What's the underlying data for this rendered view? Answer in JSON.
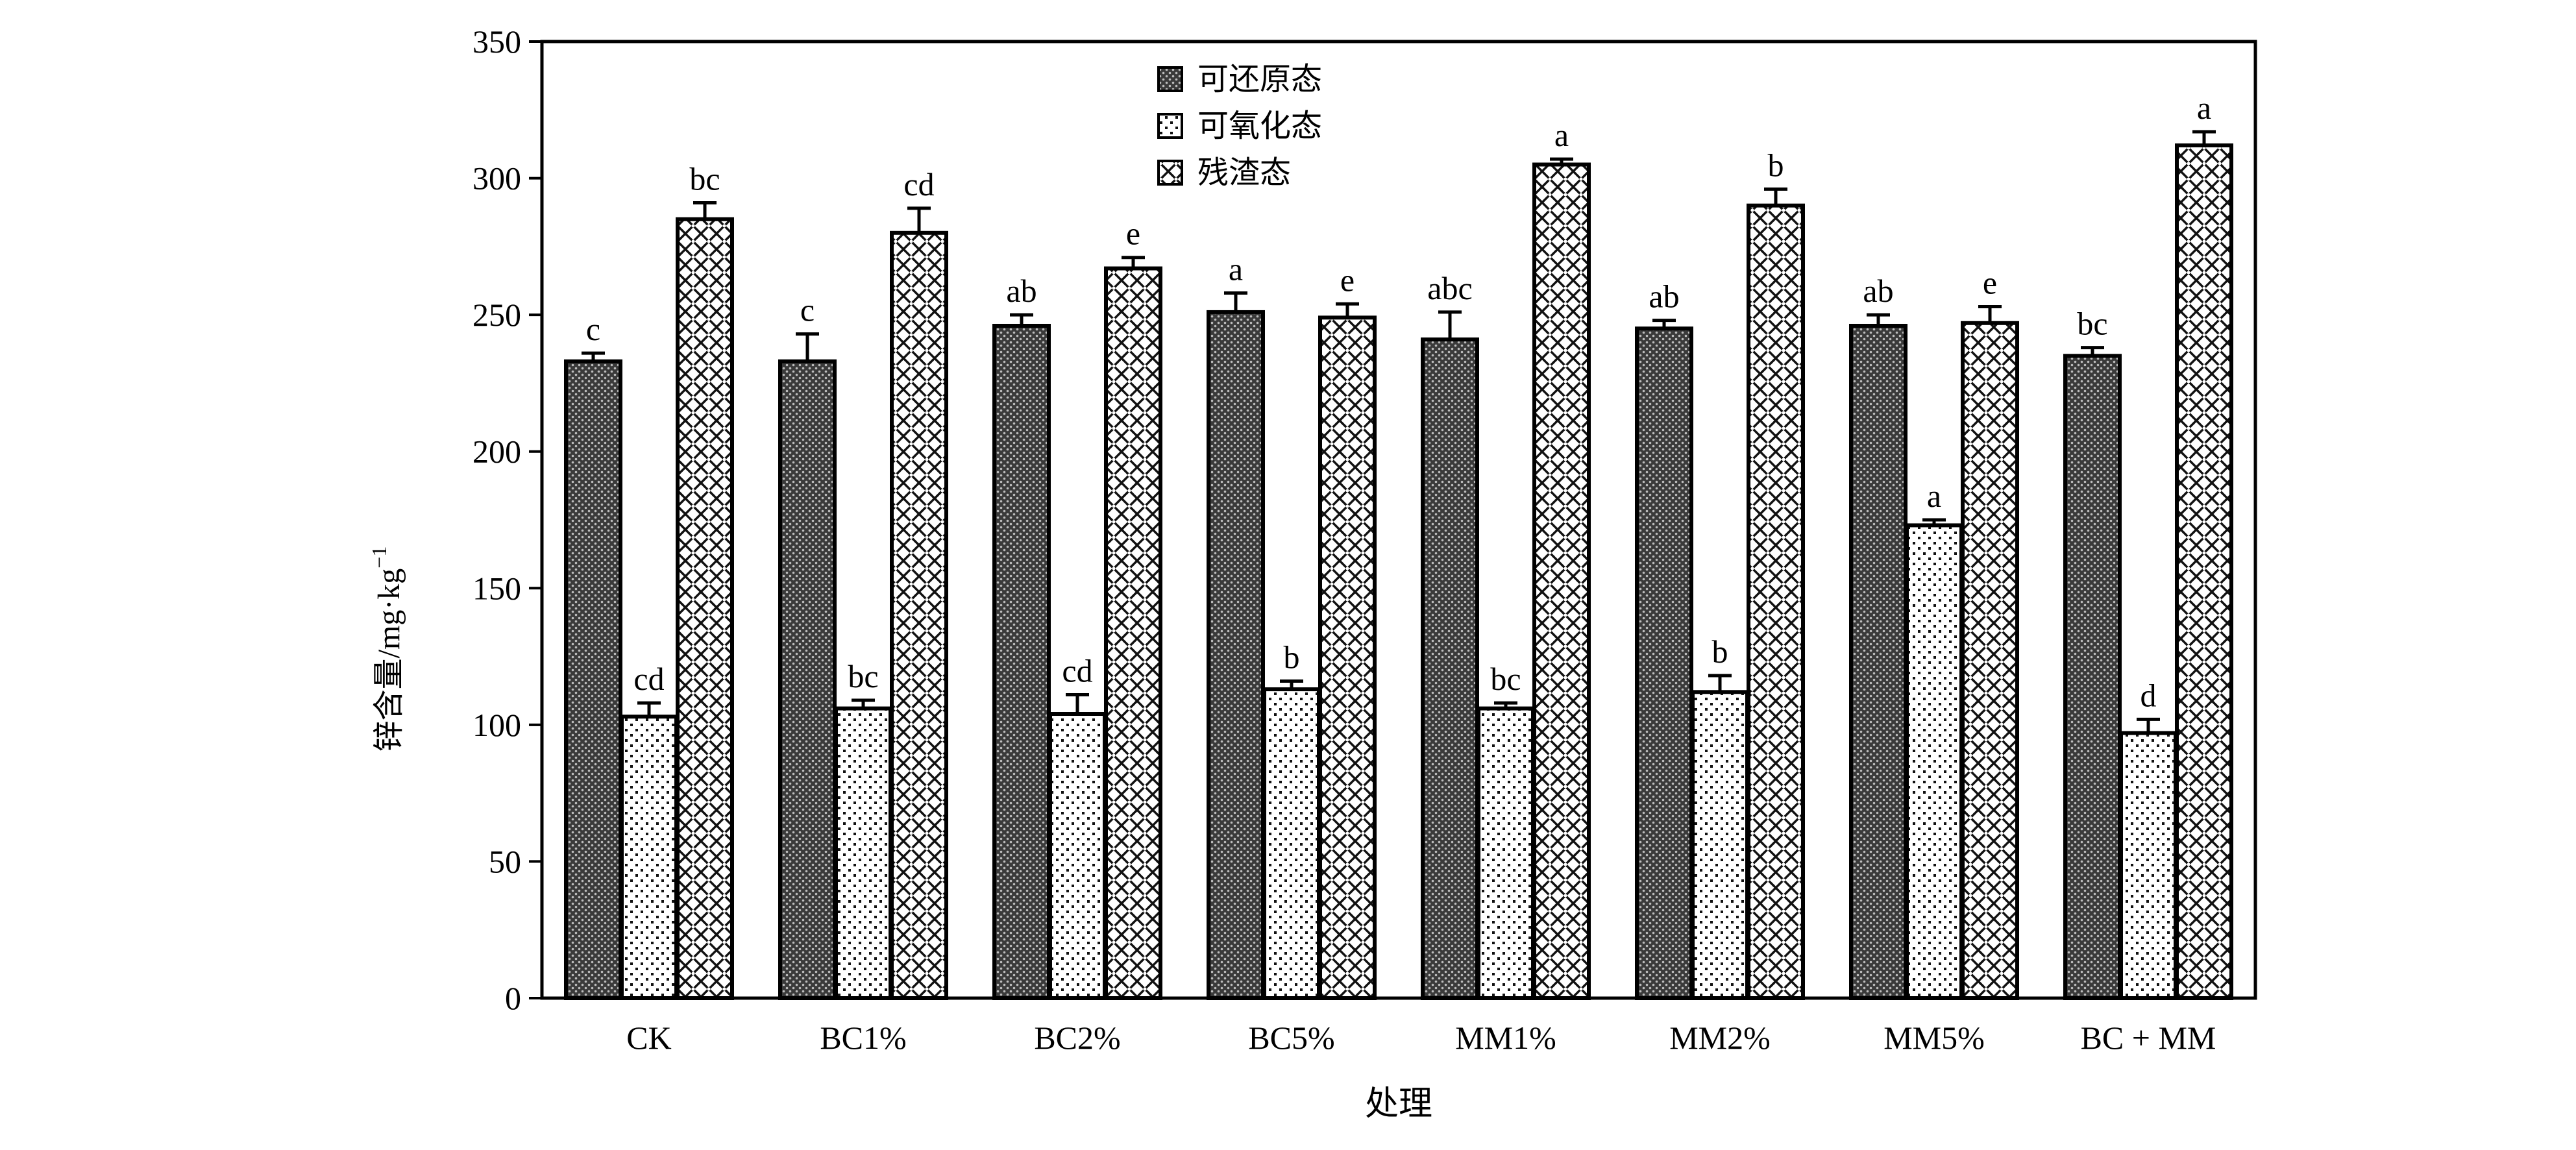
{
  "chart_data": {
    "type": "bar",
    "xlabel": "处理",
    "ylabel": "锌含量/mg·kg",
    "ylabel_sup": "−1",
    "ylim": [
      0,
      350
    ],
    "yticks": [
      0,
      50,
      100,
      150,
      200,
      250,
      300,
      350
    ],
    "legend_position": "top-center",
    "categories": [
      "CK",
      "BC1%",
      "BC2%",
      "BC5%",
      "MM1%",
      "MM2%",
      "MM5%",
      "BC + MM"
    ],
    "series": [
      {
        "name": "可还原态",
        "pattern": "dense-dark",
        "values": [
          233,
          233,
          246,
          251,
          241,
          245,
          246,
          235
        ],
        "errors": [
          3,
          10,
          4,
          7,
          10,
          3,
          4,
          3
        ],
        "labels": [
          "c",
          "c",
          "ab",
          "a",
          "abc",
          "ab",
          "ab",
          "bc"
        ]
      },
      {
        "name": "可氧化态",
        "pattern": "sparse-dots",
        "values": [
          103,
          106,
          104,
          113,
          106,
          112,
          173,
          97
        ],
        "errors": [
          5,
          3,
          7,
          3,
          2,
          6,
          2,
          5
        ],
        "labels": [
          "cd",
          "bc",
          "cd",
          "b",
          "bc",
          "b",
          "a",
          "d"
        ]
      },
      {
        "name": "残渣态",
        "pattern": "crosshatch",
        "values": [
          285,
          280,
          267,
          249,
          305,
          290,
          247,
          312
        ],
        "errors": [
          6,
          9,
          4,
          5,
          2,
          6,
          6,
          5
        ],
        "labels": [
          "bc",
          "cd",
          "e",
          "e",
          "a",
          "b",
          "e",
          "a"
        ]
      }
    ]
  }
}
